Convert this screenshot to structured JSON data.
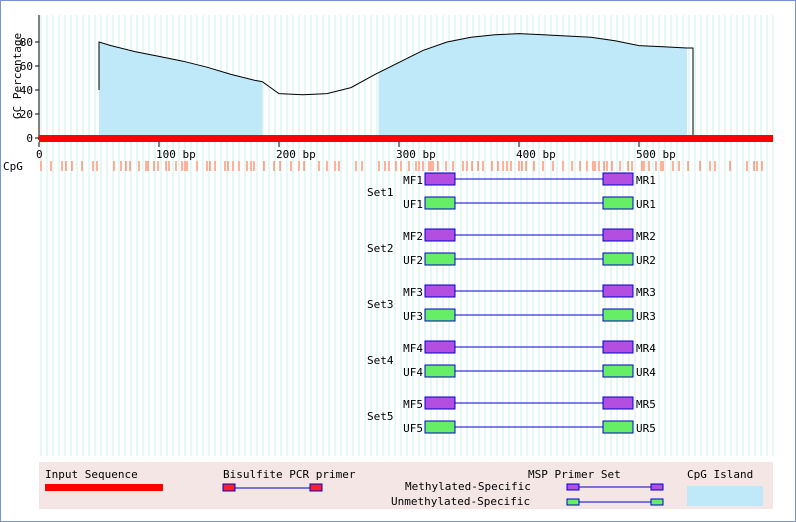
{
  "y_axis_label": "GC Percentage",
  "y_ticks": [
    "80",
    "60",
    "40",
    "20",
    "0"
  ],
  "x_ticks": [
    "0",
    "100 bp",
    "200 bp",
    "300 bp",
    "400 bp",
    "500 bp"
  ],
  "cpg_label": "CpG",
  "chart_data": {
    "type": "area",
    "ylabel": "GC Percentage",
    "ylim": [
      0,
      90
    ],
    "x": [
      50,
      60,
      80,
      100,
      120,
      140,
      160,
      180,
      186,
      200,
      220,
      240,
      260,
      280,
      300,
      320,
      340,
      360,
      380,
      400,
      420,
      440,
      460,
      480,
      500,
      520,
      540,
      545
    ],
    "y": [
      80,
      77,
      72,
      68,
      64,
      59,
      53,
      48,
      47,
      37,
      36,
      37,
      42,
      53,
      63,
      73,
      80,
      84,
      86,
      87,
      86,
      85,
      84,
      81,
      77,
      76,
      75,
      75
    ],
    "cpg_islands": [
      [
        50,
        186
      ],
      [
        283,
        540
      ]
    ]
  },
  "primer_sets": [
    {
      "set": "Set1",
      "mf": "MF1",
      "mr": "MR1",
      "uf": "UF1",
      "ur": "UR1"
    },
    {
      "set": "Set2",
      "mf": "MF2",
      "mr": "MR2",
      "uf": "UF2",
      "ur": "UR2"
    },
    {
      "set": "Set3",
      "mf": "MF3",
      "mr": "MR3",
      "uf": "UF3",
      "ur": "UR3"
    },
    {
      "set": "Set4",
      "mf": "MF4",
      "mr": "MR4",
      "uf": "UF4",
      "ur": "UR4"
    },
    {
      "set": "Set5",
      "mf": "MF5",
      "mr": "MR5",
      "uf": "UF5",
      "ur": "UR5"
    }
  ],
  "legend": {
    "input_sequence": "Input Sequence",
    "bisulfite_pcr": "Bisulfite PCR primer",
    "msp_primer_set": "MSP Primer Set",
    "methylated": "Methylated-Specific",
    "unmethylated": "Unmethylated-Specific",
    "cpg_island": "CpG Island"
  },
  "colors": {
    "sequence": "#ff0000",
    "island": "#bfe8f8",
    "methylated_primer": "#b44ee0",
    "unmethylated_primer": "#66ee66",
    "primer_line": "#0000cc",
    "cpg_tick": "#ff6633",
    "grid": "#ccf0ee"
  }
}
